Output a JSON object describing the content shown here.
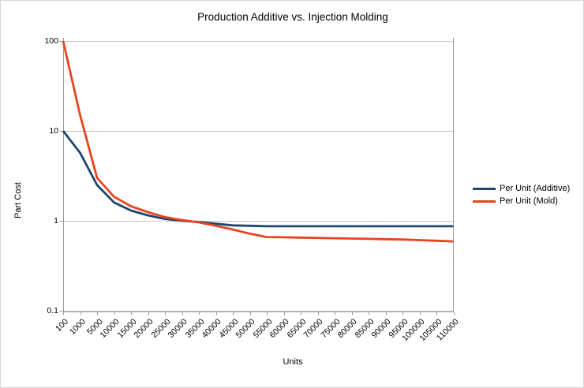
{
  "chart_data": {
    "type": "line",
    "title": "Production Additive vs. Injection Molding",
    "xlabel": "Units",
    "ylabel": "Part Cost",
    "y_scale": "log",
    "ylim": [
      0.1,
      100
    ],
    "y_ticks": [
      "100",
      "10",
      "1",
      "0.1"
    ],
    "y_tick_values": [
      100,
      10,
      1,
      0.1
    ],
    "grid": "horizontal",
    "legend_position": "right",
    "categories": [
      "100",
      "1000",
      "5000",
      "10000",
      "15000",
      "20000",
      "25000",
      "30000",
      "35000",
      "40000",
      "45000",
      "50000",
      "55000",
      "60000",
      "65000",
      "70000",
      "75000",
      "80000",
      "85000",
      "90000",
      "95000",
      "100000",
      "105000",
      "110000"
    ],
    "series": [
      {
        "name": "Per Unit (Additive)",
        "color": "#1e466e",
        "values": [
          10,
          5.7,
          2.5,
          1.6,
          1.3,
          1.15,
          1.05,
          1.0,
          0.97,
          0.93,
          0.89,
          0.88,
          0.87,
          0.87,
          0.87,
          0.87,
          0.87,
          0.87,
          0.87,
          0.87,
          0.87,
          0.87,
          0.87,
          0.87
        ]
      },
      {
        "name": "Per Unit (Mold)",
        "color": "#e8431f",
        "values": [
          100,
          15,
          3.0,
          1.85,
          1.45,
          1.25,
          1.1,
          1.02,
          0.96,
          0.88,
          0.8,
          0.72,
          0.66,
          0.655,
          0.65,
          0.645,
          0.64,
          0.635,
          0.63,
          0.625,
          0.62,
          0.61,
          0.6,
          0.59
        ]
      }
    ],
    "colors": {
      "grid": "#c6c6c6",
      "axis": "#9a9a9a",
      "text": "#000000",
      "background": "#ffffff"
    }
  }
}
